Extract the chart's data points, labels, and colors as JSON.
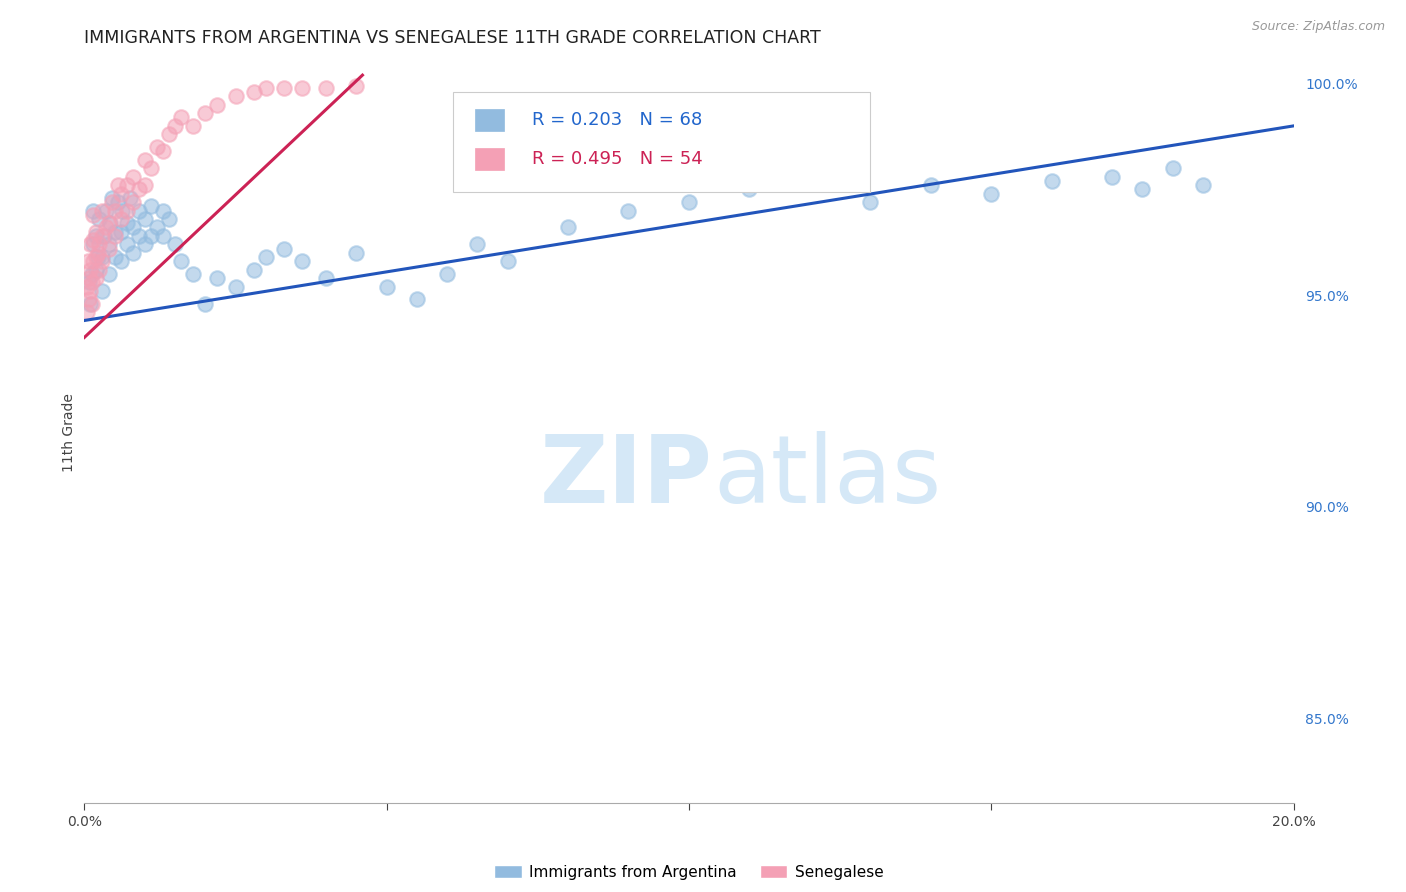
{
  "title": "IMMIGRANTS FROM ARGENTINA VS SENEGALESE 11TH GRADE CORRELATION CHART",
  "source": "Source: ZipAtlas.com",
  "ylabel": "11th Grade",
  "legend_blue_r": "R = 0.203",
  "legend_blue_n": "N = 68",
  "legend_pink_r": "R = 0.495",
  "legend_pink_n": "N = 54",
  "legend_blue_label": "Immigrants from Argentina",
  "legend_pink_label": "Senegalese",
  "blue_color": "#92bbdf",
  "pink_color": "#f4a0b5",
  "blue_line_color": "#2255bb",
  "pink_line_color": "#cc2255",
  "blue_scatter_x": [
    0.0008,
    0.001,
    0.0012,
    0.0015,
    0.0015,
    0.002,
    0.002,
    0.0022,
    0.0025,
    0.003,
    0.003,
    0.0032,
    0.0035,
    0.004,
    0.004,
    0.0042,
    0.0045,
    0.005,
    0.005,
    0.0055,
    0.006,
    0.006,
    0.0062,
    0.007,
    0.007,
    0.0075,
    0.008,
    0.008,
    0.009,
    0.009,
    0.01,
    0.01,
    0.011,
    0.011,
    0.012,
    0.013,
    0.013,
    0.014,
    0.015,
    0.016,
    0.018,
    0.02,
    0.022,
    0.025,
    0.028,
    0.03,
    0.033,
    0.036,
    0.04,
    0.045,
    0.05,
    0.055,
    0.06,
    0.065,
    0.07,
    0.08,
    0.09,
    0.1,
    0.11,
    0.12,
    0.13,
    0.14,
    0.15,
    0.16,
    0.17,
    0.175,
    0.18,
    0.185
  ],
  "blue_scatter_y": [
    0.953,
    0.948,
    0.955,
    0.962,
    0.97,
    0.956,
    0.964,
    0.959,
    0.968,
    0.951,
    0.959,
    0.964,
    0.97,
    0.955,
    0.962,
    0.967,
    0.973,
    0.959,
    0.965,
    0.972,
    0.958,
    0.965,
    0.97,
    0.962,
    0.967,
    0.973,
    0.96,
    0.966,
    0.964,
    0.97,
    0.962,
    0.968,
    0.964,
    0.971,
    0.966,
    0.964,
    0.97,
    0.968,
    0.962,
    0.958,
    0.955,
    0.948,
    0.954,
    0.952,
    0.956,
    0.959,
    0.961,
    0.958,
    0.954,
    0.96,
    0.952,
    0.949,
    0.955,
    0.962,
    0.958,
    0.966,
    0.97,
    0.972,
    0.975,
    0.978,
    0.972,
    0.976,
    0.974,
    0.977,
    0.978,
    0.975,
    0.98,
    0.976
  ],
  "pink_scatter_x": [
    0.0005,
    0.0005,
    0.0006,
    0.0008,
    0.0008,
    0.001,
    0.001,
    0.001,
    0.0012,
    0.0012,
    0.0015,
    0.0015,
    0.0015,
    0.002,
    0.002,
    0.002,
    0.0022,
    0.0025,
    0.0025,
    0.003,
    0.003,
    0.003,
    0.0035,
    0.004,
    0.004,
    0.0045,
    0.005,
    0.005,
    0.0055,
    0.006,
    0.006,
    0.007,
    0.007,
    0.008,
    0.008,
    0.009,
    0.01,
    0.01,
    0.011,
    0.012,
    0.013,
    0.014,
    0.015,
    0.016,
    0.018,
    0.02,
    0.022,
    0.025,
    0.028,
    0.03,
    0.033,
    0.036,
    0.04,
    0.045
  ],
  "pink_scatter_y": [
    0.946,
    0.952,
    0.958,
    0.949,
    0.954,
    0.951,
    0.956,
    0.962,
    0.948,
    0.953,
    0.958,
    0.963,
    0.969,
    0.954,
    0.959,
    0.965,
    0.96,
    0.956,
    0.962,
    0.958,
    0.964,
    0.97,
    0.966,
    0.961,
    0.967,
    0.972,
    0.964,
    0.97,
    0.976,
    0.968,
    0.974,
    0.97,
    0.976,
    0.972,
    0.978,
    0.975,
    0.976,
    0.982,
    0.98,
    0.985,
    0.984,
    0.988,
    0.99,
    0.992,
    0.99,
    0.993,
    0.995,
    0.997,
    0.998,
    0.999,
    0.999,
    0.999,
    0.999,
    0.9995
  ],
  "xlim": [
    0.0,
    0.2
  ],
  "ylim": [
    0.83,
    1.005
  ],
  "xtick_positions": [
    0.0,
    0.05,
    0.1,
    0.15,
    0.2
  ],
  "xtick_labels": [
    "0.0%",
    "",
    "",
    "",
    "20.0%"
  ],
  "ytick_right_positions": [
    0.85,
    0.9,
    0.95,
    1.0
  ],
  "ytick_right_labels": [
    "85.0%",
    "90.0%",
    "95.0%",
    "100.0%"
  ],
  "grid_color": "#cccccc",
  "watermark_zip": "ZIP",
  "watermark_atlas": "atlas",
  "watermark_color": "#d5e8f7",
  "background_color": "#ffffff",
  "title_fontsize": 12.5,
  "axis_label_fontsize": 10,
  "tick_fontsize": 10,
  "legend_fontsize": 13,
  "blue_line_x0": 0.0,
  "blue_line_x1": 0.2,
  "blue_line_y0": 0.944,
  "blue_line_y1": 0.99,
  "pink_line_x0": 0.0,
  "pink_line_x1": 0.046,
  "pink_line_y0": 0.94,
  "pink_line_y1": 1.002
}
